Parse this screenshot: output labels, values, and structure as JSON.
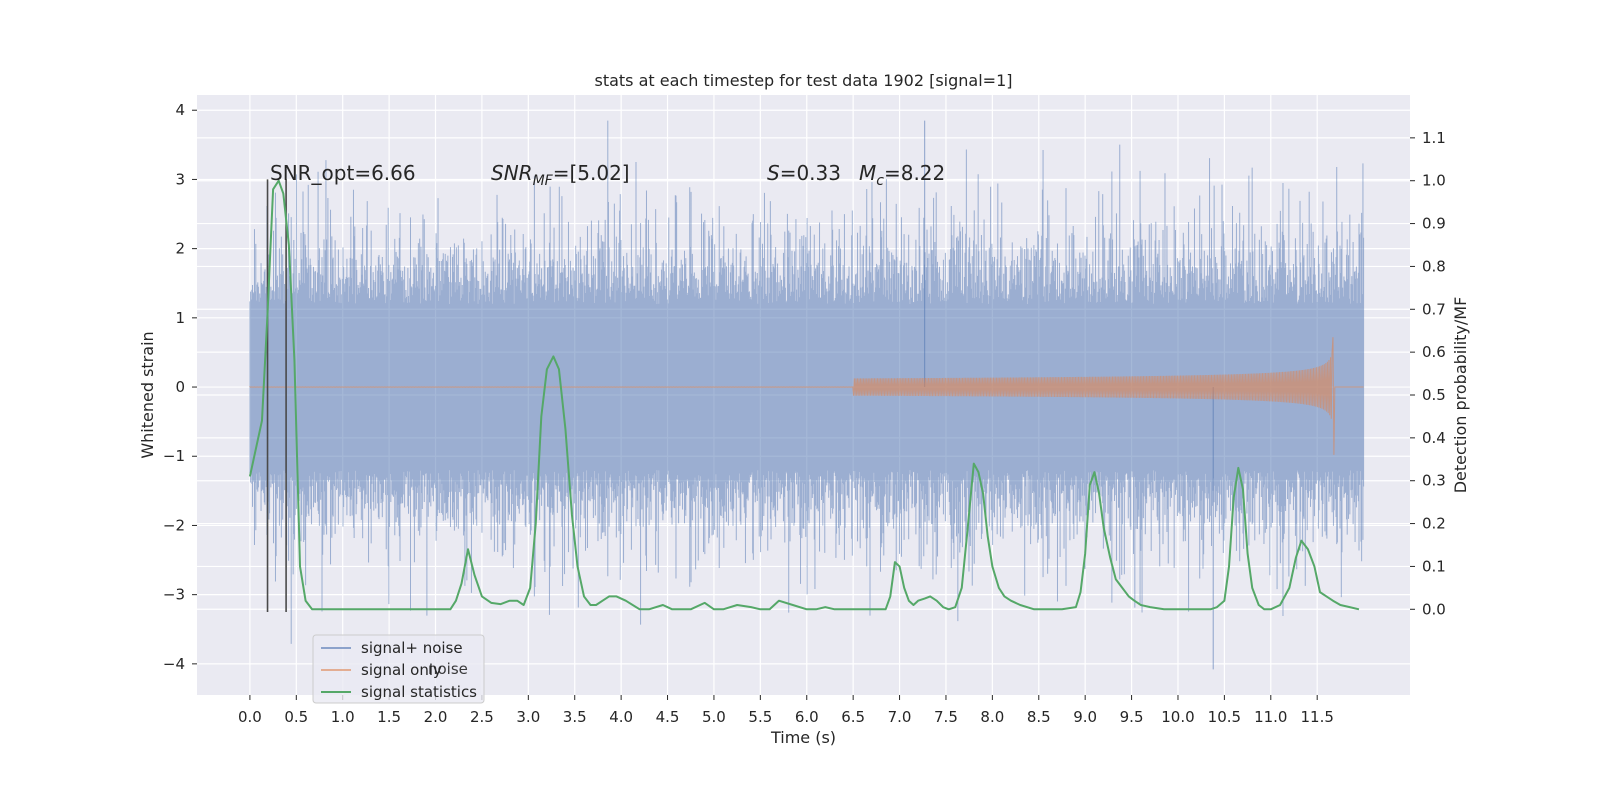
{
  "chart_data": {
    "type": "line",
    "title": "stats at each timestep for test data 1902 [signal=1]",
    "xlabel": "Time (s)",
    "ylabel": "Whitened strain",
    "y2label": "Detection probability/MF",
    "xlim": [
      -0.57,
      12.5
    ],
    "ylim": [
      -4.45,
      4.22
    ],
    "y2lim": [
      -0.2,
      1.2
    ],
    "xticks": [
      0.0,
      0.5,
      1.0,
      1.5,
      2.0,
      2.5,
      3.0,
      3.5,
      4.0,
      4.5,
      5.0,
      5.5,
      6.0,
      6.5,
      7.0,
      7.5,
      8.0,
      8.5,
      9.0,
      9.5,
      10.0,
      10.5,
      11.0,
      11.5
    ],
    "xticklabels": [
      "0.0",
      "0.5",
      "1.0",
      "1.5",
      "2.0",
      "2.5",
      "3.0",
      "3.5",
      "4.0",
      "4.5",
      "5.0",
      "5.5",
      "6.0",
      "6.5",
      "7.0",
      "7.5",
      "8.0",
      "8.5",
      "9.0",
      "9.5",
      "10.0",
      "10.5",
      "11.0",
      "11.5"
    ],
    "yticks": [
      -4,
      -3,
      -2,
      -1,
      0,
      1,
      2,
      3,
      4
    ],
    "yticklabels": [
      "−4",
      "−3",
      "−2",
      "−1",
      "0",
      "1",
      "2",
      "3",
      "4"
    ],
    "y2ticks": [
      0.0,
      0.1,
      0.2,
      0.3,
      0.4,
      0.5,
      0.6,
      0.7,
      0.8,
      0.9,
      1.0,
      1.1
    ],
    "y2ticklabels": [
      "0.0",
      "0.1",
      "0.2",
      "0.3",
      "0.4",
      "0.5",
      "0.6",
      "0.7",
      "0.8",
      "0.9",
      "1.0",
      "1.1"
    ],
    "grid": true,
    "legend_position": "lower-left",
    "background_color": "#eaeaf2",
    "annotations": {
      "snr_opt": "SNR_opt=6.66",
      "snr_mf": "SNR_MF=[5.02]",
      "s": "S=0.33",
      "mc": "M_c=8.22"
    },
    "vlines": [
      0.19,
      0.39
    ],
    "vline_range": [
      -3.25,
      3.0
    ],
    "series": [
      {
        "name": "signal+ noise",
        "color": "#4c72b0",
        "alpha": 0.5,
        "x_range": [
          0.0,
          12.0
        ],
        "core_amplitude": 1.2,
        "max_amplitude": 3.85,
        "min_value": -4.08
      },
      {
        "name": "signal only",
        "color": "#dd8452",
        "alpha": 0.6,
        "x_range": [
          0.0,
          11.68
        ],
        "merger_time": 11.68,
        "peak_value": 0.72,
        "min_value": -0.98
      },
      {
        "name": "signal statistics",
        "color": "#55a868",
        "axis": "right",
        "x": [
          0.0,
          0.06,
          0.13,
          0.19,
          0.25,
          0.31,
          0.36,
          0.42,
          0.48,
          0.54,
          0.6,
          0.67,
          0.8,
          1.0,
          1.5,
          2.0,
          2.1,
          2.16,
          2.22,
          2.28,
          2.35,
          2.42,
          2.5,
          2.6,
          2.7,
          2.8,
          2.88,
          2.95,
          3.02,
          3.08,
          3.14,
          3.2,
          3.27,
          3.33,
          3.4,
          3.47,
          3.53,
          3.6,
          3.67,
          3.73,
          3.8,
          3.87,
          3.95,
          4.05,
          4.2,
          4.3,
          4.45,
          4.55,
          4.65,
          4.75,
          4.9,
          5.0,
          5.1,
          5.25,
          5.4,
          5.5,
          5.6,
          5.7,
          5.85,
          6.0,
          6.1,
          6.2,
          6.3,
          6.45,
          6.6,
          6.75,
          6.85,
          6.9,
          6.95,
          7.0,
          7.05,
          7.1,
          7.15,
          7.2,
          7.27,
          7.33,
          7.4,
          7.47,
          7.53,
          7.6,
          7.67,
          7.73,
          7.8,
          7.85,
          7.9,
          7.95,
          8.0,
          8.07,
          8.13,
          8.2,
          8.3,
          8.45,
          8.6,
          8.75,
          8.9,
          8.95,
          9.0,
          9.05,
          9.1,
          9.15,
          9.2,
          9.27,
          9.33,
          9.4,
          9.47,
          9.53,
          9.6,
          9.7,
          9.85,
          10.0,
          10.2,
          10.35,
          10.42,
          10.5,
          10.55,
          10.6,
          10.65,
          10.7,
          10.75,
          10.8,
          10.87,
          10.93,
          11.0,
          11.1,
          11.2,
          11.27,
          11.33,
          11.4,
          11.47,
          11.53,
          11.6,
          11.67,
          11.75,
          11.85,
          11.95
        ],
        "values": [
          0.31,
          0.37,
          0.44,
          0.69,
          0.98,
          1.0,
          0.97,
          0.85,
          0.58,
          0.1,
          0.02,
          0.0,
          0.0,
          0.0,
          0.0,
          0.0,
          0.0,
          0.0,
          0.02,
          0.06,
          0.14,
          0.08,
          0.03,
          0.015,
          0.012,
          0.02,
          0.02,
          0.01,
          0.05,
          0.2,
          0.45,
          0.56,
          0.59,
          0.56,
          0.42,
          0.22,
          0.1,
          0.03,
          0.01,
          0.01,
          0.02,
          0.03,
          0.03,
          0.02,
          0.0,
          0.0,
          0.01,
          0.0,
          0.0,
          0.0,
          0.015,
          0.0,
          0.0,
          0.01,
          0.005,
          0.0,
          0.0,
          0.02,
          0.01,
          0.0,
          0.0,
          0.005,
          0.0,
          0.0,
          0.0,
          0.0,
          0.0,
          0.03,
          0.11,
          0.1,
          0.05,
          0.02,
          0.01,
          0.02,
          0.025,
          0.03,
          0.02,
          0.005,
          0.0,
          0.005,
          0.05,
          0.18,
          0.34,
          0.32,
          0.27,
          0.17,
          0.1,
          0.05,
          0.03,
          0.02,
          0.01,
          0.0,
          0.0,
          0.0,
          0.005,
          0.04,
          0.13,
          0.29,
          0.32,
          0.27,
          0.19,
          0.12,
          0.07,
          0.05,
          0.03,
          0.02,
          0.01,
          0.005,
          0.0,
          0.0,
          0.0,
          0.0,
          0.005,
          0.02,
          0.1,
          0.26,
          0.33,
          0.28,
          0.13,
          0.05,
          0.01,
          0.0,
          0.0,
          0.01,
          0.05,
          0.12,
          0.16,
          0.14,
          0.1,
          0.04,
          0.03,
          0.02,
          0.01,
          0.005,
          0.0
        ]
      }
    ]
  },
  "legend": {
    "items": [
      {
        "label": "signal+ noise",
        "color": "#4c72b0",
        "alpha": 0.6
      },
      {
        "label": "signal only",
        "color": "#dd8452",
        "alpha": 0.6
      },
      {
        "label": "signal statistics",
        "color": "#55a868",
        "alpha": 1.0
      }
    ],
    "ghost_text": "noise"
  }
}
